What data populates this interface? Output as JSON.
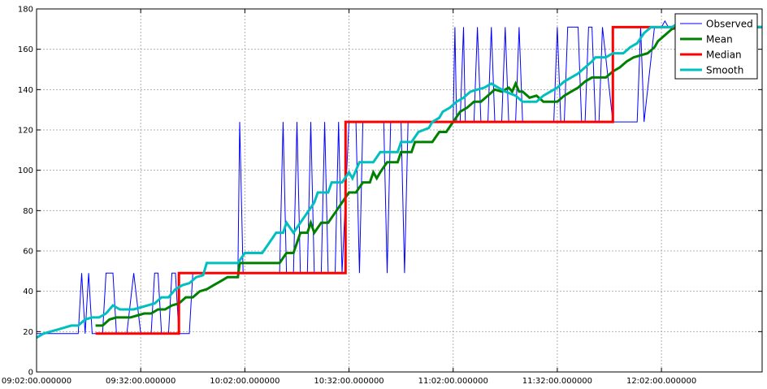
{
  "chart_data": {
    "type": "line",
    "x_axis_type": "time",
    "x_start": "09:02:00",
    "x_end": "12:31:00",
    "xticks": [
      "09:02:00.000000",
      "09:32:00.000000",
      "10:02:00.000000",
      "10:32:00.000000",
      "11:02:00.000000",
      "11:32:00.000000",
      "12:02:00.000000"
    ],
    "ylim": [
      0,
      180
    ],
    "yticks": [
      0,
      20,
      40,
      60,
      80,
      100,
      120,
      140,
      160,
      180
    ],
    "grid": true,
    "legend_position": "top-right",
    "series": [
      {
        "name": "Observed",
        "color": "#0000ff",
        "width": 1,
        "points": [
          [
            "09:02:00",
            19
          ],
          [
            "09:14:00",
            19
          ],
          [
            "09:15:00",
            49
          ],
          [
            "09:16:00",
            19
          ],
          [
            "09:17:00",
            49
          ],
          [
            "09:18:00",
            19
          ],
          [
            "09:20:00",
            19
          ],
          [
            "09:21:00",
            19
          ],
          [
            "09:22:00",
            49
          ],
          [
            "09:24:00",
            49
          ],
          [
            "09:25:00",
            19
          ],
          [
            "09:28:00",
            19
          ],
          [
            "09:30:00",
            49
          ],
          [
            "09:32:00",
            19
          ],
          [
            "09:35:00",
            19
          ],
          [
            "09:36:00",
            49
          ],
          [
            "09:37:00",
            49
          ],
          [
            "09:38:00",
            19
          ],
          [
            "09:40:00",
            19
          ],
          [
            "09:41:00",
            49
          ],
          [
            "09:42:00",
            49
          ],
          [
            "09:43:00",
            19
          ],
          [
            "09:46:00",
            19
          ],
          [
            "09:47:00",
            49
          ],
          [
            "09:48:00",
            49
          ],
          [
            "09:49:00",
            49
          ],
          [
            "10:00:00",
            49
          ],
          [
            "10:00:30",
            124
          ],
          [
            "10:01:30",
            49
          ],
          [
            "10:12:00",
            49
          ],
          [
            "10:13:00",
            124
          ],
          [
            "10:14:00",
            49
          ],
          [
            "10:16:00",
            49
          ],
          [
            "10:17:00",
            124
          ],
          [
            "10:18:00",
            49
          ],
          [
            "10:20:00",
            49
          ],
          [
            "10:21:00",
            124
          ],
          [
            "10:22:00",
            49
          ],
          [
            "10:24:00",
            49
          ],
          [
            "10:25:00",
            124
          ],
          [
            "10:26:00",
            49
          ],
          [
            "10:28:00",
            49
          ],
          [
            "10:29:00",
            124
          ],
          [
            "10:30:00",
            49
          ],
          [
            "10:32:00",
            124
          ],
          [
            "10:34:00",
            124
          ],
          [
            "10:35:00",
            49
          ],
          [
            "10:36:00",
            124
          ],
          [
            "10:42:00",
            124
          ],
          [
            "10:43:00",
            49
          ],
          [
            "10:44:00",
            124
          ],
          [
            "10:47:00",
            124
          ],
          [
            "10:48:00",
            49
          ],
          [
            "10:49:00",
            124
          ],
          [
            "11:02:00",
            124
          ],
          [
            "11:02:30",
            171
          ],
          [
            "11:03:00",
            124
          ],
          [
            "11:04:00",
            124
          ],
          [
            "11:05:00",
            171
          ],
          [
            "11:05:30",
            124
          ],
          [
            "11:08:00",
            124
          ],
          [
            "11:09:00",
            171
          ],
          [
            "11:10:00",
            124
          ],
          [
            "11:12:00",
            124
          ],
          [
            "11:13:00",
            171
          ],
          [
            "11:14:00",
            124
          ],
          [
            "11:16:00",
            124
          ],
          [
            "11:17:00",
            171
          ],
          [
            "11:18:00",
            124
          ],
          [
            "11:20:00",
            124
          ],
          [
            "11:21:00",
            171
          ],
          [
            "11:22:00",
            124
          ],
          [
            "11:31:00",
            124
          ],
          [
            "11:32:00",
            171
          ],
          [
            "11:33:00",
            124
          ],
          [
            "11:34:00",
            124
          ],
          [
            "11:35:00",
            171
          ],
          [
            "11:38:00",
            171
          ],
          [
            "11:39:00",
            124
          ],
          [
            "11:40:00",
            124
          ],
          [
            "11:41:00",
            171
          ],
          [
            "11:42:00",
            171
          ],
          [
            "11:43:00",
            124
          ],
          [
            "11:44:00",
            124
          ],
          [
            "11:45:00",
            171
          ],
          [
            "11:48:00",
            124
          ],
          [
            "11:55:00",
            124
          ],
          [
            "11:56:00",
            171
          ],
          [
            "11:57:00",
            124
          ],
          [
            "12:00:00",
            171
          ],
          [
            "12:02:00",
            171
          ],
          [
            "12:03:00",
            174
          ],
          [
            "12:04:00",
            171
          ],
          [
            "12:31:00",
            171
          ]
        ]
      },
      {
        "name": "Mean",
        "color": "#008000",
        "width": 3,
        "points": [
          [
            "09:19:00",
            23
          ],
          [
            "09:21:00",
            23
          ],
          [
            "09:23:00",
            26
          ],
          [
            "09:25:00",
            27
          ],
          [
            "09:29:00",
            27
          ],
          [
            "09:31:00",
            28
          ],
          [
            "09:33:00",
            29
          ],
          [
            "09:35:00",
            29
          ],
          [
            "09:37:00",
            31
          ],
          [
            "09:39:00",
            31
          ],
          [
            "09:41:00",
            33
          ],
          [
            "09:43:00",
            34
          ],
          [
            "09:45:00",
            37
          ],
          [
            "09:47:00",
            37
          ],
          [
            "09:49:00",
            40
          ],
          [
            "09:51:00",
            41
          ],
          [
            "09:53:00",
            43
          ],
          [
            "09:55:00",
            45
          ],
          [
            "09:57:00",
            47
          ],
          [
            "10:00:00",
            47
          ],
          [
            "10:00:30",
            54
          ],
          [
            "10:12:00",
            54
          ],
          [
            "10:14:00",
            59
          ],
          [
            "10:16:00",
            59
          ],
          [
            "10:18:00",
            69
          ],
          [
            "10:20:00",
            69
          ],
          [
            "10:21:00",
            74
          ],
          [
            "10:22:00",
            69
          ],
          [
            "10:24:00",
            74
          ],
          [
            "10:26:00",
            74
          ],
          [
            "10:28:00",
            79
          ],
          [
            "10:30:00",
            84
          ],
          [
            "10:32:00",
            89
          ],
          [
            "10:34:00",
            89
          ],
          [
            "10:36:00",
            94
          ],
          [
            "10:38:00",
            94
          ],
          [
            "10:39:00",
            99
          ],
          [
            "10:40:00",
            96
          ],
          [
            "10:41:00",
            99
          ],
          [
            "10:43:00",
            104
          ],
          [
            "10:46:00",
            104
          ],
          [
            "10:47:00",
            109
          ],
          [
            "10:50:00",
            109
          ],
          [
            "10:51:00",
            114
          ],
          [
            "10:56:00",
            114
          ],
          [
            "10:58:00",
            119
          ],
          [
            "11:00:00",
            119
          ],
          [
            "11:02:00",
            124
          ],
          [
            "11:04:00",
            129
          ],
          [
            "11:06:00",
            131
          ],
          [
            "11:08:00",
            134
          ],
          [
            "11:10:00",
            134
          ],
          [
            "11:12:00",
            137
          ],
          [
            "11:14:00",
            140
          ],
          [
            "11:16:00",
            139
          ],
          [
            "11:18:00",
            141
          ],
          [
            "11:19:00",
            139
          ],
          [
            "11:20:00",
            143
          ],
          [
            "11:21:00",
            139
          ],
          [
            "11:22:00",
            139
          ],
          [
            "11:24:00",
            136
          ],
          [
            "11:26:00",
            137
          ],
          [
            "11:28:00",
            134
          ],
          [
            "11:30:00",
            134
          ],
          [
            "11:32:00",
            134
          ],
          [
            "11:34:00",
            137
          ],
          [
            "11:36:00",
            139
          ],
          [
            "11:38:00",
            141
          ],
          [
            "11:40:00",
            144
          ],
          [
            "11:42:00",
            146
          ],
          [
            "11:46:00",
            146
          ],
          [
            "11:48:00",
            149
          ],
          [
            "11:50:00",
            151
          ],
          [
            "11:52:00",
            154
          ],
          [
            "11:54:00",
            156
          ],
          [
            "11:58:00",
            158
          ],
          [
            "12:00:00",
            161
          ],
          [
            "12:01:00",
            164
          ],
          [
            "12:03:00",
            167
          ],
          [
            "12:05:00",
            170
          ],
          [
            "12:07:00",
            171
          ],
          [
            "12:31:00",
            171
          ]
        ]
      },
      {
        "name": "Median",
        "color": "#ff0000",
        "width": 3,
        "points": [
          [
            "09:19:00",
            19
          ],
          [
            "09:43:00",
            19
          ],
          [
            "09:43:00",
            49
          ],
          [
            "10:31:00",
            49
          ],
          [
            "10:31:00",
            124
          ],
          [
            "11:48:00",
            124
          ],
          [
            "11:48:00",
            171
          ],
          [
            "12:31:00",
            171
          ]
        ]
      },
      {
        "name": "Smooth",
        "color": "#00bfbf",
        "width": 3,
        "points": [
          [
            "09:02:00",
            17
          ],
          [
            "09:04:00",
            19
          ],
          [
            "09:06:00",
            20
          ],
          [
            "09:08:00",
            21
          ],
          [
            "09:10:00",
            22
          ],
          [
            "09:12:00",
            23
          ],
          [
            "09:14:00",
            23
          ],
          [
            "09:16:00",
            26
          ],
          [
            "09:18:00",
            27
          ],
          [
            "09:20:00",
            27
          ],
          [
            "09:22:00",
            29
          ],
          [
            "09:24:00",
            33
          ],
          [
            "09:26:00",
            31
          ],
          [
            "09:30:00",
            31
          ],
          [
            "09:32:00",
            32
          ],
          [
            "09:34:00",
            33
          ],
          [
            "09:36:00",
            34
          ],
          [
            "09:38:00",
            37
          ],
          [
            "09:40:00",
            37
          ],
          [
            "09:42:00",
            41
          ],
          [
            "09:44:00",
            43
          ],
          [
            "09:46:00",
            44
          ],
          [
            "09:48:00",
            47
          ],
          [
            "09:50:00",
            48
          ],
          [
            "09:51:00",
            54
          ],
          [
            "10:00:00",
            54
          ],
          [
            "10:02:00",
            59
          ],
          [
            "10:07:00",
            59
          ],
          [
            "10:09:00",
            64
          ],
          [
            "10:11:00",
            69
          ],
          [
            "10:13:00",
            69
          ],
          [
            "10:14:00",
            74
          ],
          [
            "10:16:00",
            69
          ],
          [
            "10:18:00",
            74
          ],
          [
            "10:20:00",
            79
          ],
          [
            "10:22:00",
            84
          ],
          [
            "10:23:00",
            89
          ],
          [
            "10:26:00",
            89
          ],
          [
            "10:27:00",
            94
          ],
          [
            "10:30:00",
            94
          ],
          [
            "10:32:00",
            99
          ],
          [
            "10:33:00",
            96
          ],
          [
            "10:35:00",
            104
          ],
          [
            "10:39:00",
            104
          ],
          [
            "10:41:00",
            109
          ],
          [
            "10:46:00",
            109
          ],
          [
            "10:47:00",
            114
          ],
          [
            "10:50:00",
            114
          ],
          [
            "10:52:00",
            119
          ],
          [
            "10:55:00",
            121
          ],
          [
            "10:56:00",
            124
          ],
          [
            "10:58:00",
            126
          ],
          [
            "10:59:00",
            129
          ],
          [
            "11:01:00",
            131
          ],
          [
            "11:03:00",
            134
          ],
          [
            "11:05:00",
            136
          ],
          [
            "11:07:00",
            139
          ],
          [
            "11:09:00",
            140
          ],
          [
            "11:11:00",
            141
          ],
          [
            "11:13:00",
            143
          ],
          [
            "11:15:00",
            141
          ],
          [
            "11:17:00",
            139
          ],
          [
            "11:20:00",
            137
          ],
          [
            "11:22:00",
            134
          ],
          [
            "11:26:00",
            134
          ],
          [
            "11:28:00",
            137
          ],
          [
            "11:30:00",
            139
          ],
          [
            "11:32:00",
            141
          ],
          [
            "11:34:00",
            144
          ],
          [
            "11:36:00",
            146
          ],
          [
            "11:38:00",
            148
          ],
          [
            "11:40:00",
            151
          ],
          [
            "11:42:00",
            154
          ],
          [
            "11:43:00",
            156
          ],
          [
            "11:46:00",
            156
          ],
          [
            "11:48:00",
            158
          ],
          [
            "11:51:00",
            158
          ],
          [
            "11:53:00",
            161
          ],
          [
            "11:55:00",
            163
          ],
          [
            "11:57:00",
            168
          ],
          [
            "11:59:00",
            171
          ],
          [
            "12:01:00",
            171
          ],
          [
            "12:05:00",
            171
          ],
          [
            "12:07:00",
            173
          ],
          [
            "12:31:00",
            171
          ]
        ]
      }
    ]
  }
}
